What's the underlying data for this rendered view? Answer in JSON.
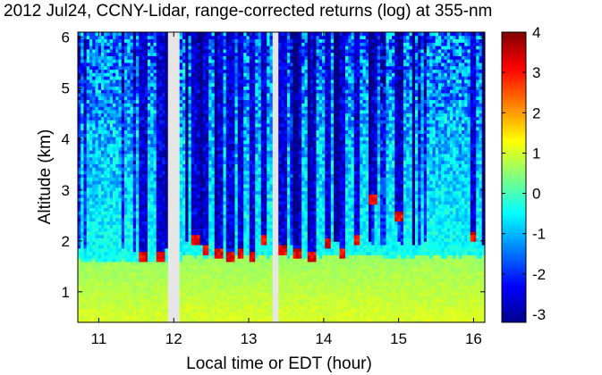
{
  "chart_data": {
    "type": "heatmap",
    "title": "2012 Jul24, CCNY-Lidar, range-corrected returns (log) at 355-nm",
    "xlabel": "Local time or EDT (hour)",
    "ylabel": "Altitude (km)",
    "xlim": [
      10.72,
      16.15
    ],
    "ylim": [
      0.4,
      6.1
    ],
    "x_ticks": [
      "11",
      "12",
      "13",
      "14",
      "15",
      "16"
    ],
    "y_ticks": [
      "1",
      "2",
      "3",
      "4",
      "5",
      "6"
    ],
    "colorbar": {
      "range": [
        -3.2,
        4
      ],
      "ticks": [
        "-3",
        "-2",
        "-1",
        "0",
        "1",
        "2",
        "3",
        "4"
      ],
      "colormap": "jet"
    },
    "data_gaps_hours": [
      [
        11.93,
        12.07
      ],
      [
        13.3,
        13.39
      ]
    ],
    "approx_profile": {
      "boundary_layer_top_km": 1.6,
      "boundary_layer_value": 0.6,
      "free_troposphere_value": -0.4,
      "upper_altitude_noise_value": -1.5,
      "cloud_base_value": 3.2
    },
    "cloud_features": [
      {
        "time": 11.6,
        "altitude_km": 1.7
      },
      {
        "time": 11.82,
        "altitude_km": 1.7
      },
      {
        "time": 12.3,
        "altitude_km": 2.05
      },
      {
        "time": 12.42,
        "altitude_km": 1.8
      },
      {
        "time": 12.6,
        "altitude_km": 1.75
      },
      {
        "time": 12.75,
        "altitude_km": 1.72
      },
      {
        "time": 12.9,
        "altitude_km": 1.74
      },
      {
        "time": 13.05,
        "altitude_km": 1.72
      },
      {
        "time": 13.2,
        "altitude_km": 2.0
      },
      {
        "time": 13.45,
        "altitude_km": 1.8
      },
      {
        "time": 13.65,
        "altitude_km": 1.75
      },
      {
        "time": 13.85,
        "altitude_km": 1.72
      },
      {
        "time": 14.05,
        "altitude_km": 1.95
      },
      {
        "time": 14.25,
        "altitude_km": 1.75
      },
      {
        "time": 14.45,
        "altitude_km": 2.0
      },
      {
        "time": 14.65,
        "altitude_km": 2.8
      },
      {
        "time": 15.0,
        "altitude_km": 2.5
      },
      {
        "time": 16.0,
        "altitude_km": 2.1
      }
    ]
  }
}
